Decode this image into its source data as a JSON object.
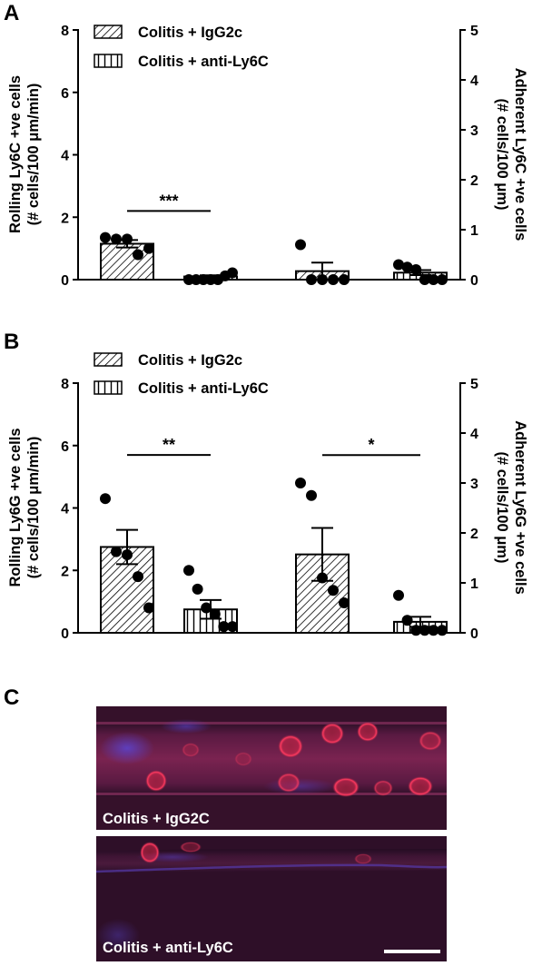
{
  "colors": {
    "igg_pattern": "diagonal-hatch",
    "anti_pattern": "vertical-hatch",
    "micro_bg": "#35112a",
    "cell_red": "#e02a4e",
    "nuclei_blue": "#4a3bc8",
    "scale_bar": "#ffffff"
  },
  "legend": {
    "item1": "Colitis + IgG2c",
    "item2": "Colitis + anti-Ly6C"
  },
  "chart_data": [
    {
      "panel_label": "A",
      "type": "bar",
      "left_axis": {
        "label_line1": "Rolling Ly6C +ve cells",
        "label_line2": "(# cells/100 μm/min)",
        "ylim": [
          0,
          8
        ],
        "ticks": [
          "0",
          "2",
          "4",
          "6",
          "8"
        ]
      },
      "right_axis": {
        "label_line1": "Adherent Ly6C +ve cells",
        "label_line2": "(# cells/100 μm)",
        "ylim": [
          0,
          5
        ],
        "ticks": [
          "0",
          "1",
          "2",
          "3",
          "4",
          "5"
        ]
      },
      "groups": [
        {
          "axis": "left",
          "treatment": "igg",
          "mean": 1.15,
          "sem": 0.12,
          "points": [
            1.35,
            1.3,
            1.3,
            0.8,
            1.0
          ]
        },
        {
          "axis": "left",
          "treatment": "anti",
          "mean": 0.1,
          "sem": 0.04,
          "points": [
            0.0,
            0.0,
            0.0,
            0.0,
            0.0,
            0.12,
            0.22
          ]
        },
        {
          "axis": "right",
          "treatment": "igg",
          "mean": 0.17,
          "sem": 0.17,
          "points": [
            0.7,
            0.0,
            0.0,
            0.0,
            0.0
          ]
        },
        {
          "axis": "right",
          "treatment": "anti",
          "mean": 0.14,
          "sem": 0.05,
          "points": [
            0.3,
            0.25,
            0.2,
            0.0,
            0.0,
            0.0
          ]
        }
      ],
      "significance": [
        {
          "text": "***",
          "from_group": 0,
          "to_group": 1,
          "axis": "left",
          "level": 2.2
        }
      ],
      "grid": false
    },
    {
      "panel_label": "B",
      "type": "bar",
      "left_axis": {
        "label_line1": "Rolling Ly6G +ve cells",
        "label_line2": "(# cells/100 μm/min)",
        "ylim": [
          0,
          8
        ],
        "ticks": [
          "0",
          "2",
          "4",
          "6",
          "8"
        ]
      },
      "right_axis": {
        "label_line1": "Adherent Ly6G +ve cells",
        "label_line2": "(# cells/100 μm)",
        "ylim": [
          0,
          5
        ],
        "ticks": [
          "0",
          "1",
          "2",
          "3",
          "4",
          "5"
        ]
      },
      "groups": [
        {
          "axis": "left",
          "treatment": "igg",
          "mean": 2.75,
          "sem": 0.55,
          "points": [
            4.3,
            2.6,
            2.5,
            1.8,
            0.8
          ]
        },
        {
          "axis": "left",
          "treatment": "anti",
          "mean": 0.75,
          "sem": 0.3,
          "points": [
            2.0,
            1.4,
            0.8,
            0.6,
            0.2,
            0.2
          ]
        },
        {
          "axis": "right",
          "treatment": "igg",
          "mean": 1.57,
          "sem": 0.53,
          "points": [
            3.0,
            2.75,
            1.1,
            0.85,
            0.6
          ]
        },
        {
          "axis": "right",
          "treatment": "anti",
          "mean": 0.22,
          "sem": 0.1,
          "points": [
            0.75,
            0.25,
            0.05,
            0.05,
            0.05,
            0.05
          ]
        }
      ],
      "significance": [
        {
          "text": "**",
          "from_group": 0,
          "to_group": 1,
          "axis": "left",
          "level": 5.7
        },
        {
          "text": "*",
          "from_group": 2,
          "to_group": 3,
          "axis": "right",
          "level": 3.56
        }
      ],
      "grid": false
    }
  ],
  "panel_c": {
    "label": "C",
    "image1_caption": "Colitis + IgG2C",
    "image2_caption": "Colitis + anti-Ly6C"
  }
}
